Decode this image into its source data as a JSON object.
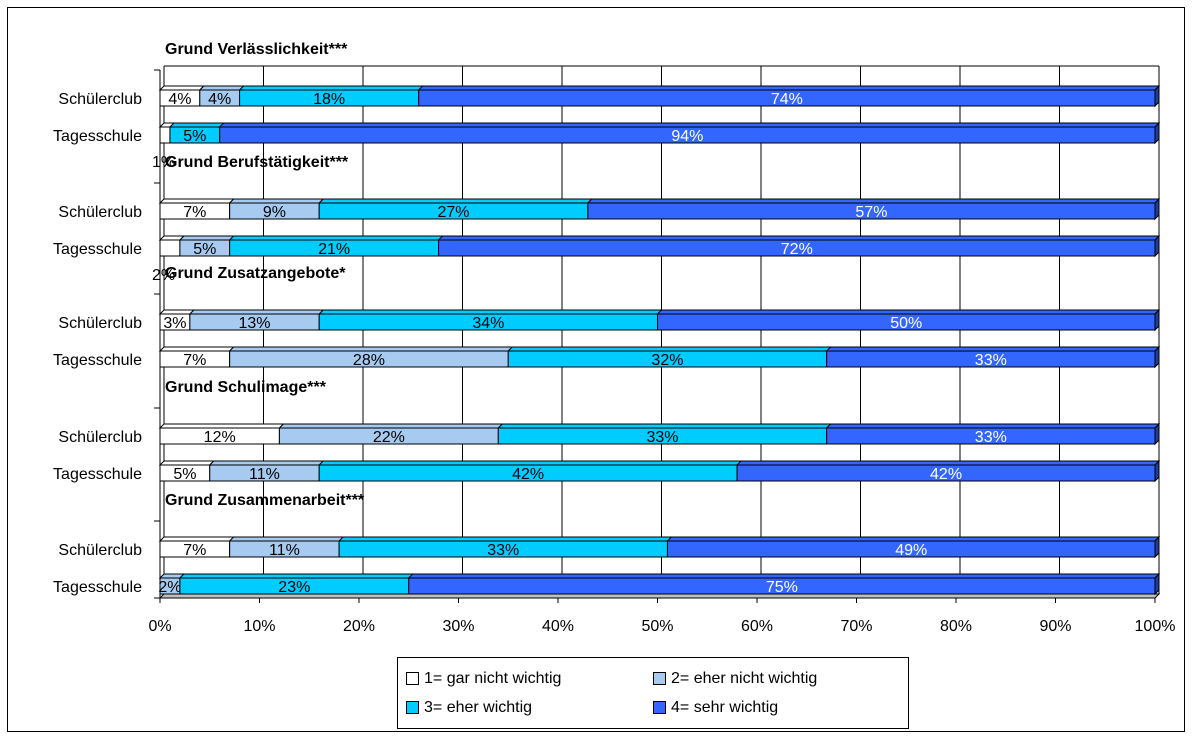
{
  "chart_data": {
    "type": "bar",
    "orientation": "horizontal",
    "stacked": "percent",
    "xlim": [
      0,
      100
    ],
    "x_ticks": [
      "0%",
      "10%",
      "20%",
      "30%",
      "40%",
      "50%",
      "60%",
      "70%",
      "80%",
      "90%",
      "100%"
    ],
    "grid": true,
    "legend_position": "bottom",
    "series": [
      {
        "name": "1= gar nicht wichtig",
        "color": "#ffffff",
        "label_color": "#000000"
      },
      {
        "name": "2= eher nicht wichtig",
        "color": "#a6caf0",
        "label_color": "#000000"
      },
      {
        "name": "3= eher wichtig",
        "color": "#00ccff",
        "label_color": "#000000"
      },
      {
        "name": "4= sehr wichtig",
        "color": "#3366ff",
        "label_color": "#ffffff"
      }
    ],
    "groups": [
      {
        "title": "Grund Verlässlichkeit***",
        "bars": [
          {
            "category": "Schülerclub",
            "values": [
              4,
              4,
              18,
              74
            ],
            "labels": [
              "4%",
              "4%",
              "18%",
              "74%"
            ]
          },
          {
            "category": "Tagesschule",
            "values": [
              1,
              5,
              94
            ],
            "labels": [
              "1%",
              "5%",
              "94%"
            ],
            "series_index": [
              0,
              2,
              3
            ]
          }
        ]
      },
      {
        "title": "Grund Berufstätigkeit***",
        "bars": [
          {
            "category": "Schülerclub",
            "values": [
              7,
              9,
              27,
              57
            ],
            "labels": [
              "7%",
              "9%",
              "27%",
              "57%"
            ]
          },
          {
            "category": "Tagesschule",
            "values": [
              2,
              5,
              21,
              72
            ],
            "labels": [
              "2%",
              "5%",
              "21%",
              "72%"
            ]
          }
        ]
      },
      {
        "title": "Grund Zusatzangebote*",
        "bars": [
          {
            "category": "Schülerclub",
            "values": [
              3,
              13,
              34,
              50
            ],
            "labels": [
              "3%",
              "13%",
              "34%",
              "50%"
            ]
          },
          {
            "category": "Tagesschule",
            "values": [
              7,
              28,
              32,
              33
            ],
            "labels": [
              "7%",
              "28%",
              "32%",
              "33%"
            ]
          }
        ]
      },
      {
        "title": "Grund Schulimage***",
        "bars": [
          {
            "category": "Schülerclub",
            "values": [
              12,
              22,
              33,
              33
            ],
            "labels": [
              "12%",
              "22%",
              "33%",
              "33%"
            ]
          },
          {
            "category": "Tagesschule",
            "values": [
              5,
              11,
              42,
              42
            ],
            "labels": [
              "5%",
              "11%",
              "42%",
              "42%"
            ]
          }
        ]
      },
      {
        "title": "Grund Zusammenarbeit***",
        "bars": [
          {
            "category": "Schülerclub",
            "values": [
              7,
              11,
              33,
              49
            ],
            "labels": [
              "7%",
              "11%",
              "33%",
              "49%"
            ]
          },
          {
            "category": "Tagesschule",
            "values": [
              2,
              23,
              75
            ],
            "labels": [
              "2%",
              "23%",
              "75%"
            ],
            "series_index": [
              1,
              2,
              3
            ]
          }
        ]
      }
    ]
  },
  "legend": {
    "items": [
      {
        "label": "1= gar nicht wichtig",
        "color": "#ffffff"
      },
      {
        "label": "2= eher nicht wichtig",
        "color": "#a6caf0"
      },
      {
        "label": "3= eher wichtig",
        "color": "#00ccff"
      },
      {
        "label": "4= sehr wichtig",
        "color": "#3366ff"
      }
    ]
  }
}
